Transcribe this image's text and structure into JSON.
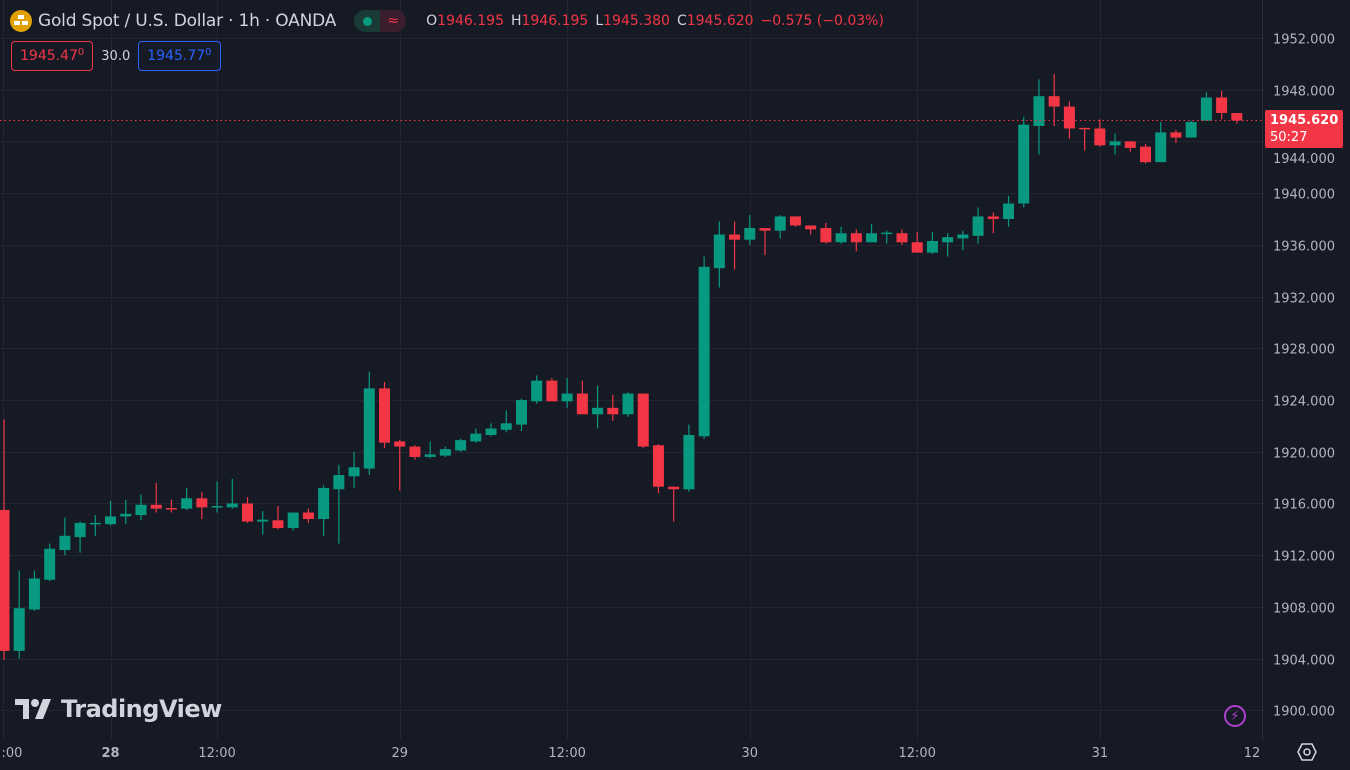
{
  "header": {
    "title": "Gold Spot / U.S. Dollar · 1h · OANDA",
    "ohlc": [
      {
        "key": "O",
        "value": "1946.195"
      },
      {
        "key": "H",
        "value": "1946.195"
      },
      {
        "key": "L",
        "value": "1945.380"
      },
      {
        "key": "C",
        "value": "1945.620"
      }
    ],
    "change": "−0.575 (−0.03%)",
    "sell_price": "1945.47",
    "sell_price_sup": "0",
    "spread": "30.0",
    "buy_price": "1945.77",
    "buy_price_sup": "0"
  },
  "last_price_tag": {
    "price": "1945.620",
    "countdown": "50:27"
  },
  "brand": "TradingView",
  "icons": [
    "gold-bars-icon",
    "status-dot-icon",
    "wave-icon",
    "lightning-icon",
    "settings-hexagon-icon",
    "tradingview-logo-icon"
  ],
  "colors": {
    "up": "#089981",
    "down": "#f23645",
    "background": "#161a25",
    "grid": "#232632",
    "buy": "#2962ff"
  },
  "chart_data": {
    "type": "candlestick",
    "ylim": [
      1898,
      1954
    ],
    "y_ticks": [
      "1952.000",
      "1948.000",
      "1944.000",
      "1940.000",
      "1936.000",
      "1932.000",
      "1928.000",
      "1924.000",
      "1920.000",
      "1916.000",
      "1912.000",
      "1908.000",
      "1904.000",
      "1900.000"
    ],
    "y_tick_values": [
      1952,
      1948,
      1944,
      1940,
      1936,
      1932,
      1928,
      1924,
      1920,
      1916,
      1912,
      1908,
      1904,
      1900
    ],
    "x_ticks": [
      {
        "label": ":00",
        "candle": 0,
        "bold": false
      },
      {
        "label": "28",
        "candle": 7,
        "bold": true
      },
      {
        "label": "12:00",
        "candle": 14,
        "bold": false
      },
      {
        "label": "29",
        "candle": 26,
        "bold": false
      },
      {
        "label": "12:00",
        "candle": 37,
        "bold": false
      },
      {
        "label": "30",
        "candle": 49,
        "bold": false
      },
      {
        "label": "12:00",
        "candle": 60,
        "bold": false
      },
      {
        "label": "31",
        "candle": 72,
        "bold": false
      },
      {
        "label": "12",
        "candle": 82,
        "bold": false
      }
    ],
    "grid": true,
    "last_price": 1945.62,
    "candles_ohlc": [
      [
        1915.5,
        1922.5,
        1903.9,
        1904.6
      ],
      [
        1904.6,
        1910.8,
        1904.0,
        1907.9
      ],
      [
        1907.8,
        1910.8,
        1907.7,
        1910.2
      ],
      [
        1910.1,
        1912.9,
        1910.0,
        1912.5
      ],
      [
        1912.4,
        1914.9,
        1912.0,
        1913.5
      ],
      [
        1913.4,
        1914.6,
        1912.2,
        1914.5
      ],
      [
        1914.4,
        1915.1,
        1913.5,
        1914.5
      ],
      [
        1914.4,
        1916.2,
        1914.3,
        1915.0
      ],
      [
        1915.0,
        1916.3,
        1914.4,
        1915.2
      ],
      [
        1915.1,
        1916.7,
        1914.7,
        1915.9
      ],
      [
        1915.9,
        1917.6,
        1915.3,
        1915.6
      ],
      [
        1915.65,
        1916.3,
        1915.3,
        1915.55
      ],
      [
        1915.6,
        1917.2,
        1915.5,
        1916.4
      ],
      [
        1916.4,
        1916.9,
        1914.8,
        1915.7
      ],
      [
        1915.7,
        1917.7,
        1915.3,
        1915.8
      ],
      [
        1915.7,
        1917.9,
        1915.6,
        1916.0
      ],
      [
        1916.0,
        1916.5,
        1914.5,
        1914.6
      ],
      [
        1914.6,
        1915.4,
        1913.6,
        1914.75
      ],
      [
        1914.7,
        1915.8,
        1914.0,
        1914.1
      ],
      [
        1914.1,
        1915.3,
        1913.9,
        1915.3
      ],
      [
        1915.3,
        1915.6,
        1914.5,
        1914.8
      ],
      [
        1914.8,
        1917.4,
        1913.5,
        1917.2
      ],
      [
        1917.1,
        1919.0,
        1912.9,
        1918.2
      ],
      [
        1918.1,
        1920.0,
        1917.2,
        1918.8
      ],
      [
        1918.7,
        1926.2,
        1918.2,
        1924.9
      ],
      [
        1924.9,
        1925.4,
        1920.3,
        1920.7
      ],
      [
        1920.8,
        1920.9,
        1917.0,
        1920.4
      ],
      [
        1920.4,
        1920.5,
        1919.4,
        1919.6
      ],
      [
        1919.6,
        1920.8,
        1919.5,
        1919.8
      ],
      [
        1919.7,
        1920.4,
        1919.6,
        1920.2
      ],
      [
        1920.1,
        1921.0,
        1920.0,
        1920.9
      ],
      [
        1920.8,
        1921.8,
        1920.7,
        1921.4
      ],
      [
        1921.3,
        1922.2,
        1921.2,
        1921.8
      ],
      [
        1921.7,
        1923.2,
        1921.5,
        1922.2
      ],
      [
        1922.1,
        1924.1,
        1921.6,
        1924.0
      ],
      [
        1923.9,
        1925.9,
        1923.7,
        1925.5
      ],
      [
        1925.5,
        1925.7,
        1923.9,
        1923.9
      ],
      [
        1923.9,
        1925.7,
        1923.4,
        1924.5
      ],
      [
        1924.5,
        1925.5,
        1922.9,
        1922.9
      ],
      [
        1922.9,
        1925.1,
        1921.8,
        1923.4
      ],
      [
        1923.4,
        1924.4,
        1922.4,
        1922.9
      ],
      [
        1922.9,
        1924.6,
        1922.7,
        1924.5
      ],
      [
        1924.5,
        1924.5,
        1920.3,
        1920.4
      ],
      [
        1920.5,
        1920.6,
        1916.8,
        1917.3
      ],
      [
        1917.3,
        1917.3,
        1914.6,
        1917.1
      ],
      [
        1917.1,
        1922.1,
        1916.9,
        1921.3
      ],
      [
        1921.2,
        1935.1,
        1921.0,
        1934.3
      ],
      [
        1934.2,
        1937.8,
        1932.7,
        1936.8
      ],
      [
        1936.8,
        1937.8,
        1934.1,
        1936.4
      ],
      [
        1936.4,
        1938.3,
        1936.0,
        1937.3
      ],
      [
        1937.3,
        1937.3,
        1935.2,
        1937.1
      ],
      [
        1937.1,
        1938.3,
        1936.5,
        1938.2
      ],
      [
        1938.2,
        1938.2,
        1937.4,
        1937.5
      ],
      [
        1937.5,
        1937.5,
        1936.8,
        1937.2
      ],
      [
        1937.3,
        1937.7,
        1936.1,
        1936.2
      ],
      [
        1936.2,
        1937.4,
        1936.1,
        1936.9
      ],
      [
        1936.9,
        1937.2,
        1935.5,
        1936.2
      ],
      [
        1936.2,
        1937.6,
        1936.2,
        1936.9
      ],
      [
        1936.85,
        1937.1,
        1936.1,
        1936.95
      ],
      [
        1936.9,
        1937.2,
        1936.0,
        1936.2
      ],
      [
        1936.2,
        1937.0,
        1935.4,
        1935.4
      ],
      [
        1935.4,
        1937.0,
        1935.3,
        1936.3
      ],
      [
        1936.2,
        1936.9,
        1935.1,
        1936.6
      ],
      [
        1936.5,
        1937.1,
        1935.6,
        1936.8
      ],
      [
        1936.7,
        1938.9,
        1936.1,
        1938.2
      ],
      [
        1938.2,
        1938.5,
        1936.9,
        1938.0
      ],
      [
        1938.0,
        1939.8,
        1937.4,
        1939.2
      ],
      [
        1939.2,
        1945.9,
        1938.9,
        1945.3
      ],
      [
        1945.2,
        1948.8,
        1943.0,
        1947.5
      ],
      [
        1947.5,
        1949.2,
        1945.2,
        1946.7
      ],
      [
        1946.7,
        1947.1,
        1944.2,
        1945.0
      ],
      [
        1945.05,
        1945.05,
        1943.3,
        1944.95
      ],
      [
        1945.0,
        1945.7,
        1943.6,
        1943.7
      ],
      [
        1943.7,
        1944.6,
        1943.0,
        1944.0
      ],
      [
        1944.0,
        1944.0,
        1943.2,
        1943.5
      ],
      [
        1943.6,
        1943.8,
        1942.3,
        1942.4
      ],
      [
        1942.4,
        1945.5,
        1942.4,
        1944.7
      ],
      [
        1944.7,
        1944.9,
        1943.9,
        1944.3
      ],
      [
        1944.3,
        1945.6,
        1944.3,
        1945.5
      ],
      [
        1945.6,
        1947.8,
        1945.6,
        1947.4
      ],
      [
        1947.4,
        1947.9,
        1945.7,
        1946.2
      ],
      [
        1946.195,
        1946.195,
        1945.38,
        1945.62
      ]
    ]
  }
}
